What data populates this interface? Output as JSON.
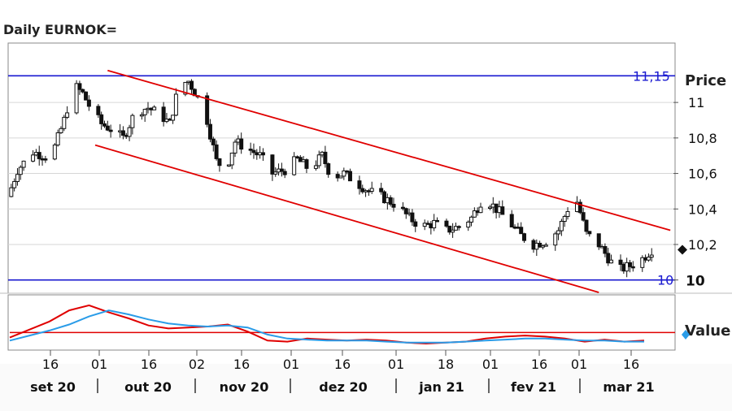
{
  "header": {
    "title": "Daily EURNOK="
  },
  "colors": {
    "candle": "#111111",
    "channel": "#e00000",
    "level": "#1a1ad0",
    "osc_blue": "#2a9ce8",
    "osc_red": "#e00000",
    "osc_ref": "#e00000",
    "grid": "#d6d6d6",
    "frame": "#888888"
  },
  "chart_data": [
    {
      "type": "candlestick",
      "title": "Daily EURNOK=",
      "ylabel": "Price",
      "y_ticks": [
        "11",
        "10,8",
        "10,6",
        "10,4",
        "10,2",
        "10"
      ],
      "y_tick_values": [
        11.0,
        10.8,
        10.6,
        10.4,
        10.2,
        10.0
      ],
      "ylim": [
        9.93,
        11.33
      ],
      "x_day_ticks": [
        "16",
        "01",
        "16",
        "02",
        "16",
        "01",
        "16",
        "01",
        "18",
        "01",
        "16",
        "01",
        "16"
      ],
      "x_month_labels": [
        "set 20",
        "out 20",
        "nov 20",
        "dez 20",
        "jan 21",
        "fev 21",
        "mar 21"
      ],
      "levels": [
        {
          "label": "11,15",
          "value": 11.15
        },
        {
          "label": "10",
          "value": 10.0
        }
      ],
      "channel_lines": [
        {
          "from": [
            "2020-10-01",
            11.18
          ],
          "to": [
            "2021-03-31",
            10.28
          ]
        },
        {
          "from": [
            "2020-09-27",
            10.76
          ],
          "to": [
            "2021-03-08",
            9.93
          ]
        }
      ],
      "current_marker": 10.17,
      "grid": true,
      "close_series": [
        [
          "2020-08-30",
          10.47
        ],
        [
          "2020-09-02",
          10.62
        ],
        [
          "2020-09-07",
          10.72
        ],
        [
          "2020-09-11",
          10.7
        ],
        [
          "2020-09-14",
          10.75
        ],
        [
          "2020-09-17",
          10.9
        ],
        [
          "2020-09-20",
          11.1
        ],
        [
          "2020-09-23",
          11.05
        ],
        [
          "2020-09-26",
          10.95
        ],
        [
          "2020-09-29",
          10.88
        ],
        [
          "2020-10-02",
          10.85
        ],
        [
          "2020-10-06",
          10.8
        ],
        [
          "2020-10-10",
          10.95
        ],
        [
          "2020-10-14",
          10.97
        ],
        [
          "2020-10-18",
          10.93
        ],
        [
          "2020-10-21",
          10.88
        ],
        [
          "2020-10-24",
          11.1
        ],
        [
          "2020-10-27",
          11.12
        ],
        [
          "2020-10-30",
          11.03
        ],
        [
          "2020-11-02",
          10.9
        ],
        [
          "2020-11-05",
          10.67
        ],
        [
          "2020-11-08",
          10.62
        ],
        [
          "2020-11-11",
          10.78
        ],
        [
          "2020-11-15",
          10.74
        ],
        [
          "2020-11-19",
          10.7
        ],
        [
          "2020-11-23",
          10.6
        ],
        [
          "2020-11-27",
          10.62
        ],
        [
          "2020-12-01",
          10.68
        ],
        [
          "2020-12-05",
          10.62
        ],
        [
          "2020-12-09",
          10.7
        ],
        [
          "2020-12-12",
          10.58
        ],
        [
          "2020-12-16",
          10.6
        ],
        [
          "2020-12-20",
          10.55
        ],
        [
          "2020-12-24",
          10.5
        ],
        [
          "2020-12-28",
          10.47
        ],
        [
          "2021-01-02",
          10.42
        ],
        [
          "2021-01-06",
          10.35
        ],
        [
          "2021-01-10",
          10.3
        ],
        [
          "2021-01-14",
          10.32
        ],
        [
          "2021-01-18",
          10.28
        ],
        [
          "2021-01-22",
          10.3
        ],
        [
          "2021-01-26",
          10.35
        ],
        [
          "2021-01-30",
          10.47
        ],
        [
          "2021-02-03",
          10.4
        ],
        [
          "2021-02-07",
          10.33
        ],
        [
          "2021-02-11",
          10.25
        ],
        [
          "2021-02-15",
          10.2
        ],
        [
          "2021-02-19",
          10.22
        ],
        [
          "2021-02-23",
          10.28
        ],
        [
          "2021-02-26",
          10.4
        ],
        [
          "2021-03-01",
          10.44
        ],
        [
          "2021-03-04",
          10.26
        ],
        [
          "2021-03-08",
          10.2
        ],
        [
          "2021-03-12",
          10.1
        ],
        [
          "2021-03-15",
          10.06
        ],
        [
          "2021-03-18",
          10.08
        ],
        [
          "2021-03-22",
          10.12
        ],
        [
          "2021-03-25",
          10.17
        ]
      ]
    },
    {
      "type": "line",
      "ylabel": "Value",
      "series": [
        {
          "color": "#e00000",
          "values": [
            20,
            36,
            52,
            74,
            84,
            70,
            58,
            44,
            38,
            40,
            42,
            46,
            32,
            14,
            12,
            18,
            16,
            14,
            16,
            14,
            10,
            8,
            10,
            12,
            18,
            22,
            24,
            22,
            18,
            12,
            16,
            12,
            14
          ]
        },
        {
          "color": "#2a9ce8",
          "values": [
            14,
            24,
            34,
            46,
            62,
            74,
            66,
            56,
            48,
            44,
            42,
            44,
            40,
            26,
            18,
            16,
            14,
            14,
            14,
            12,
            10,
            10,
            10,
            12,
            14,
            16,
            18,
            18,
            16,
            14,
            14,
            12,
            12
          ]
        }
      ],
      "reference_value": 30
    }
  ]
}
